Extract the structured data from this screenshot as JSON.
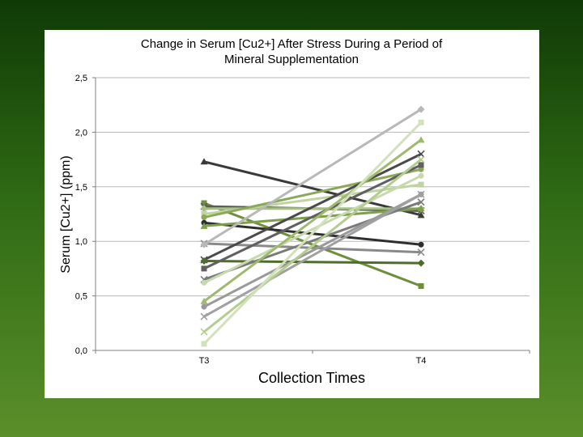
{
  "chart_data": {
    "type": "line",
    "title": "Change in Serum [Cu2+] After Stress During a Period of Mineral Supplementation",
    "title_lines": [
      "Change in Serum [Cu2+] After Stress During a Period of",
      "Mineral Supplementation"
    ],
    "xlabel": "Collection Times",
    "ylabel": "Serum [Cu2+] (ppm)",
    "categories": [
      "T3",
      "T4"
    ],
    "ylim": [
      0,
      2.5
    ],
    "yticks": [
      "0,0",
      "0,5",
      "1,0",
      "1,5",
      "2,0",
      "2,5"
    ],
    "ytick_values": [
      0,
      0.5,
      1.0,
      1.5,
      2.0,
      2.5
    ],
    "grid": true,
    "legend": "none",
    "series": [
      {
        "values": [
          1.73,
          1.24
        ],
        "color": "#3a3a3a",
        "marker": "triangle"
      },
      {
        "values": [
          1.35,
          0.59
        ],
        "color": "#6e8f3c",
        "marker": "square"
      },
      {
        "values": [
          1.32,
          1.28
        ],
        "color": "#5a5a5a",
        "marker": "x"
      },
      {
        "values": [
          1.3,
          1.3
        ],
        "color": "#a6bf84",
        "marker": "diamond"
      },
      {
        "values": [
          1.25,
          1.52
        ],
        "color": "#c0d4a0",
        "marker": "square"
      },
      {
        "values": [
          1.22,
          1.66
        ],
        "color": "#8aa85a",
        "marker": "circle"
      },
      {
        "values": [
          1.17,
          0.97
        ],
        "color": "#2e2e2e",
        "marker": "circle"
      },
      {
        "values": [
          1.14,
          1.3
        ],
        "color": "#7fa04a",
        "marker": "triangle"
      },
      {
        "values": [
          0.98,
          0.9
        ],
        "color": "#8a8a8a",
        "marker": "x"
      },
      {
        "values": [
          0.97,
          2.21
        ],
        "color": "#b8b8b8",
        "marker": "diamond"
      },
      {
        "values": [
          0.83,
          1.8
        ],
        "color": "#4a4a4a",
        "marker": "x"
      },
      {
        "values": [
          0.82,
          0.8
        ],
        "color": "#4d6e2a",
        "marker": "diamond"
      },
      {
        "values": [
          0.75,
          1.7
        ],
        "color": "#606060",
        "marker": "square"
      },
      {
        "values": [
          0.65,
          1.36
        ],
        "color": "#7a7a7a",
        "marker": "x"
      },
      {
        "values": [
          0.62,
          1.6
        ],
        "color": "#c8d8b0",
        "marker": "circle"
      },
      {
        "values": [
          0.45,
          1.93
        ],
        "color": "#9dba6e",
        "marker": "triangle"
      },
      {
        "values": [
          0.4,
          1.43
        ],
        "color": "#9a9a9a",
        "marker": "circle"
      },
      {
        "values": [
          0.31,
          1.43
        ],
        "color": "#a0a0a0",
        "marker": "x"
      },
      {
        "values": [
          0.17,
          1.75
        ],
        "color": "#b5cc90",
        "marker": "x"
      },
      {
        "values": [
          0.06,
          2.09
        ],
        "color": "#d2e0bc",
        "marker": "square"
      }
    ],
    "colors": {
      "gridline": "#b8b8b8",
      "axis": "#808080"
    }
  }
}
